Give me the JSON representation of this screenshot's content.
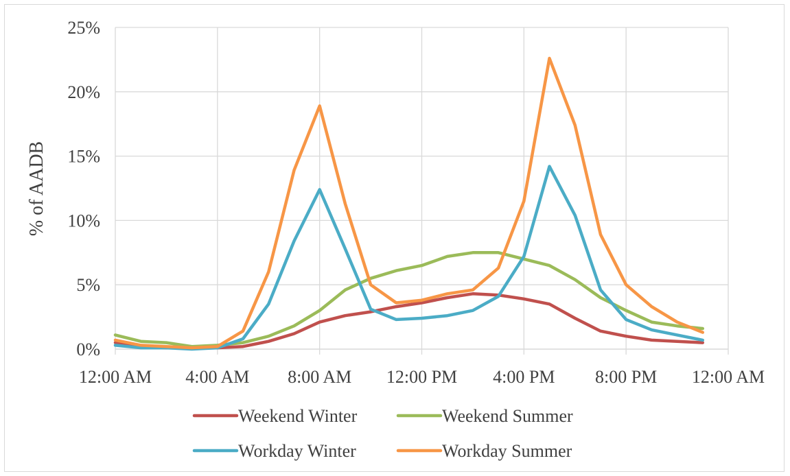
{
  "chart_data": {
    "type": "line",
    "title": "",
    "xlabel": "",
    "ylabel": "% of AADB",
    "x_ticks": [
      "12:00 AM",
      "4:00 AM",
      "8:00 AM",
      "12:00 PM",
      "4:00 PM",
      "8:00 PM",
      "12:00 AM"
    ],
    "y_ticks": [
      "0%",
      "5%",
      "10%",
      "15%",
      "20%",
      "25%"
    ],
    "ylim": [
      0,
      25
    ],
    "xlim": [
      0,
      24
    ],
    "x": [
      0,
      1,
      2,
      3,
      4,
      5,
      6,
      7,
      8,
      9,
      10,
      11,
      12,
      13,
      14,
      15,
      16,
      17,
      18,
      19,
      20,
      21,
      22,
      23
    ],
    "grid": true,
    "legend_placement": "bottom",
    "series": [
      {
        "name": "Weekend Winter",
        "color": "#c0504d",
        "values": [
          0.5,
          0.2,
          0.1,
          0.1,
          0.1,
          0.2,
          0.6,
          1.2,
          2.1,
          2.6,
          2.9,
          3.3,
          3.6,
          4.0,
          4.3,
          4.2,
          3.9,
          3.5,
          2.4,
          1.4,
          1.0,
          0.7,
          0.6,
          0.5
        ]
      },
      {
        "name": "Weekend Summer",
        "color": "#9bbb59",
        "values": [
          1.1,
          0.6,
          0.5,
          0.2,
          0.3,
          0.5,
          1.0,
          1.8,
          3.0,
          4.6,
          5.5,
          6.1,
          6.5,
          7.2,
          7.5,
          7.5,
          7.0,
          6.5,
          5.4,
          4.0,
          3.0,
          2.1,
          1.8,
          1.6
        ]
      },
      {
        "name": "Workday Winter",
        "color": "#4bacc6",
        "values": [
          0.3,
          0.1,
          0.1,
          0.0,
          0.1,
          0.8,
          3.5,
          8.4,
          12.4,
          7.8,
          3.1,
          2.3,
          2.4,
          2.6,
          3.0,
          4.1,
          7.2,
          14.2,
          10.4,
          4.6,
          2.3,
          1.5,
          1.1,
          0.7
        ]
      },
      {
        "name": "Workday Summer",
        "color": "#f79646",
        "values": [
          0.7,
          0.3,
          0.2,
          0.1,
          0.2,
          1.4,
          6.0,
          13.9,
          18.9,
          11.3,
          5.0,
          3.6,
          3.8,
          4.3,
          4.6,
          6.3,
          11.5,
          22.6,
          17.4,
          8.9,
          5.0,
          3.3,
          2.1,
          1.3
        ]
      }
    ]
  }
}
